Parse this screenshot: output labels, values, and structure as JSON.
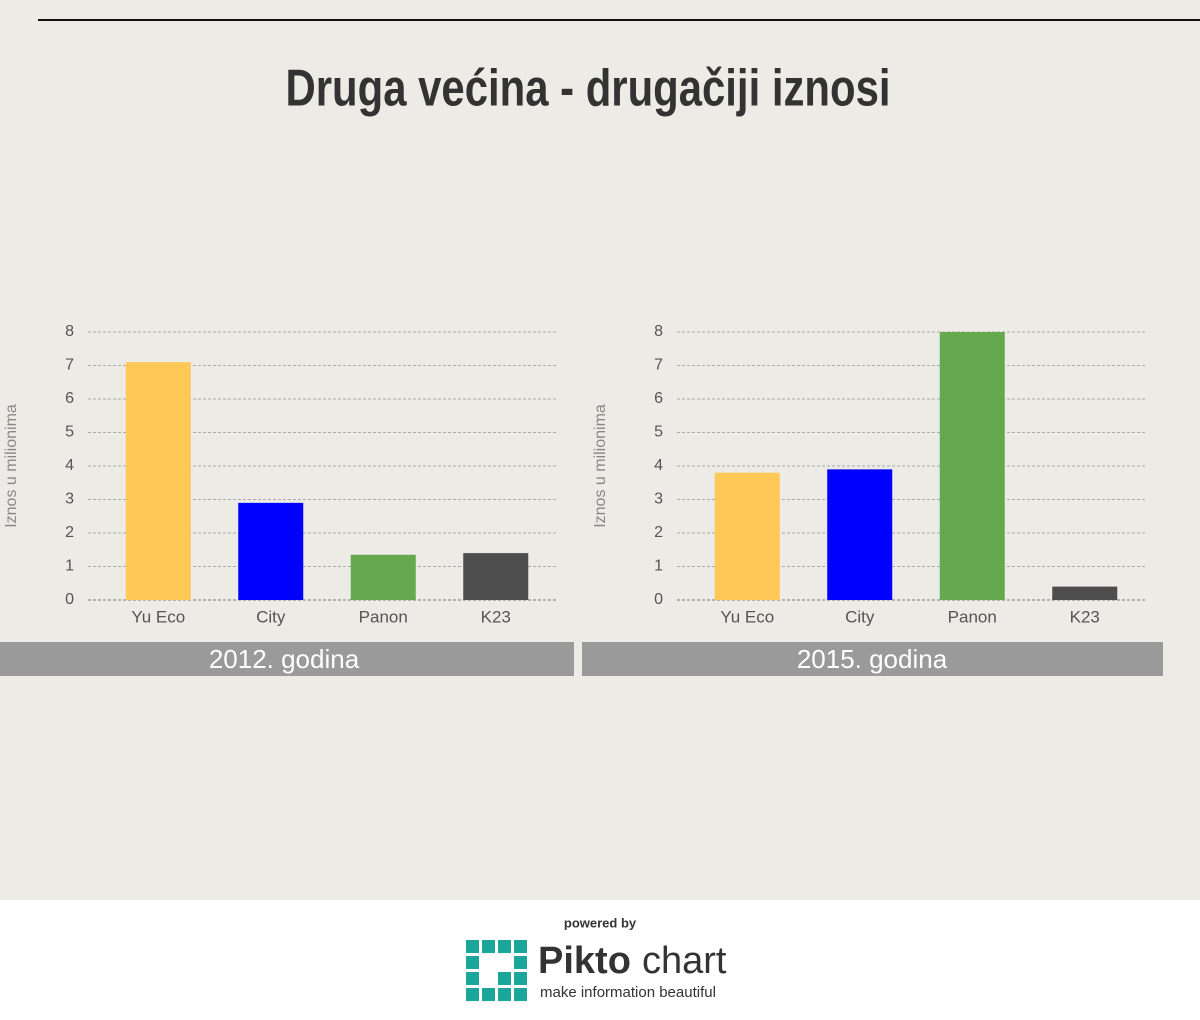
{
  "title": "Druga većina - drugačiji iznosi",
  "chart_data": [
    {
      "type": "bar",
      "title": "2012. godina",
      "y_label": "Iznos u milionima",
      "categories": [
        "Yu Eco",
        "City",
        "Panon",
        "K23"
      ],
      "values": [
        7.1,
        2.9,
        1.35,
        1.4
      ],
      "colors": [
        "#ffc857",
        "#0000ff",
        "#66a84d",
        "#4d4d4d"
      ],
      "ylim": [
        0,
        8
      ],
      "yticks": [
        0,
        1,
        2,
        3,
        4,
        5,
        6,
        7,
        8
      ],
      "grid": true
    },
    {
      "type": "bar",
      "title": "2015. godina",
      "y_label": "Iznos u milionima",
      "categories": [
        "Yu Eco",
        "City",
        "Panon",
        "K23"
      ],
      "values": [
        3.8,
        3.9,
        8,
        0.4
      ],
      "colors": [
        "#ffc857",
        "#0000ff",
        "#66a84d",
        "#4d4d4d"
      ],
      "ylim": [
        0,
        8
      ],
      "yticks": [
        0,
        1,
        2,
        3,
        4,
        5,
        6,
        7,
        8
      ],
      "grid": true
    }
  ],
  "footer": {
    "powered_by": "powered by",
    "brand_bold": "Pikto",
    "brand_light": "chart",
    "tagline": "make information beautiful"
  }
}
